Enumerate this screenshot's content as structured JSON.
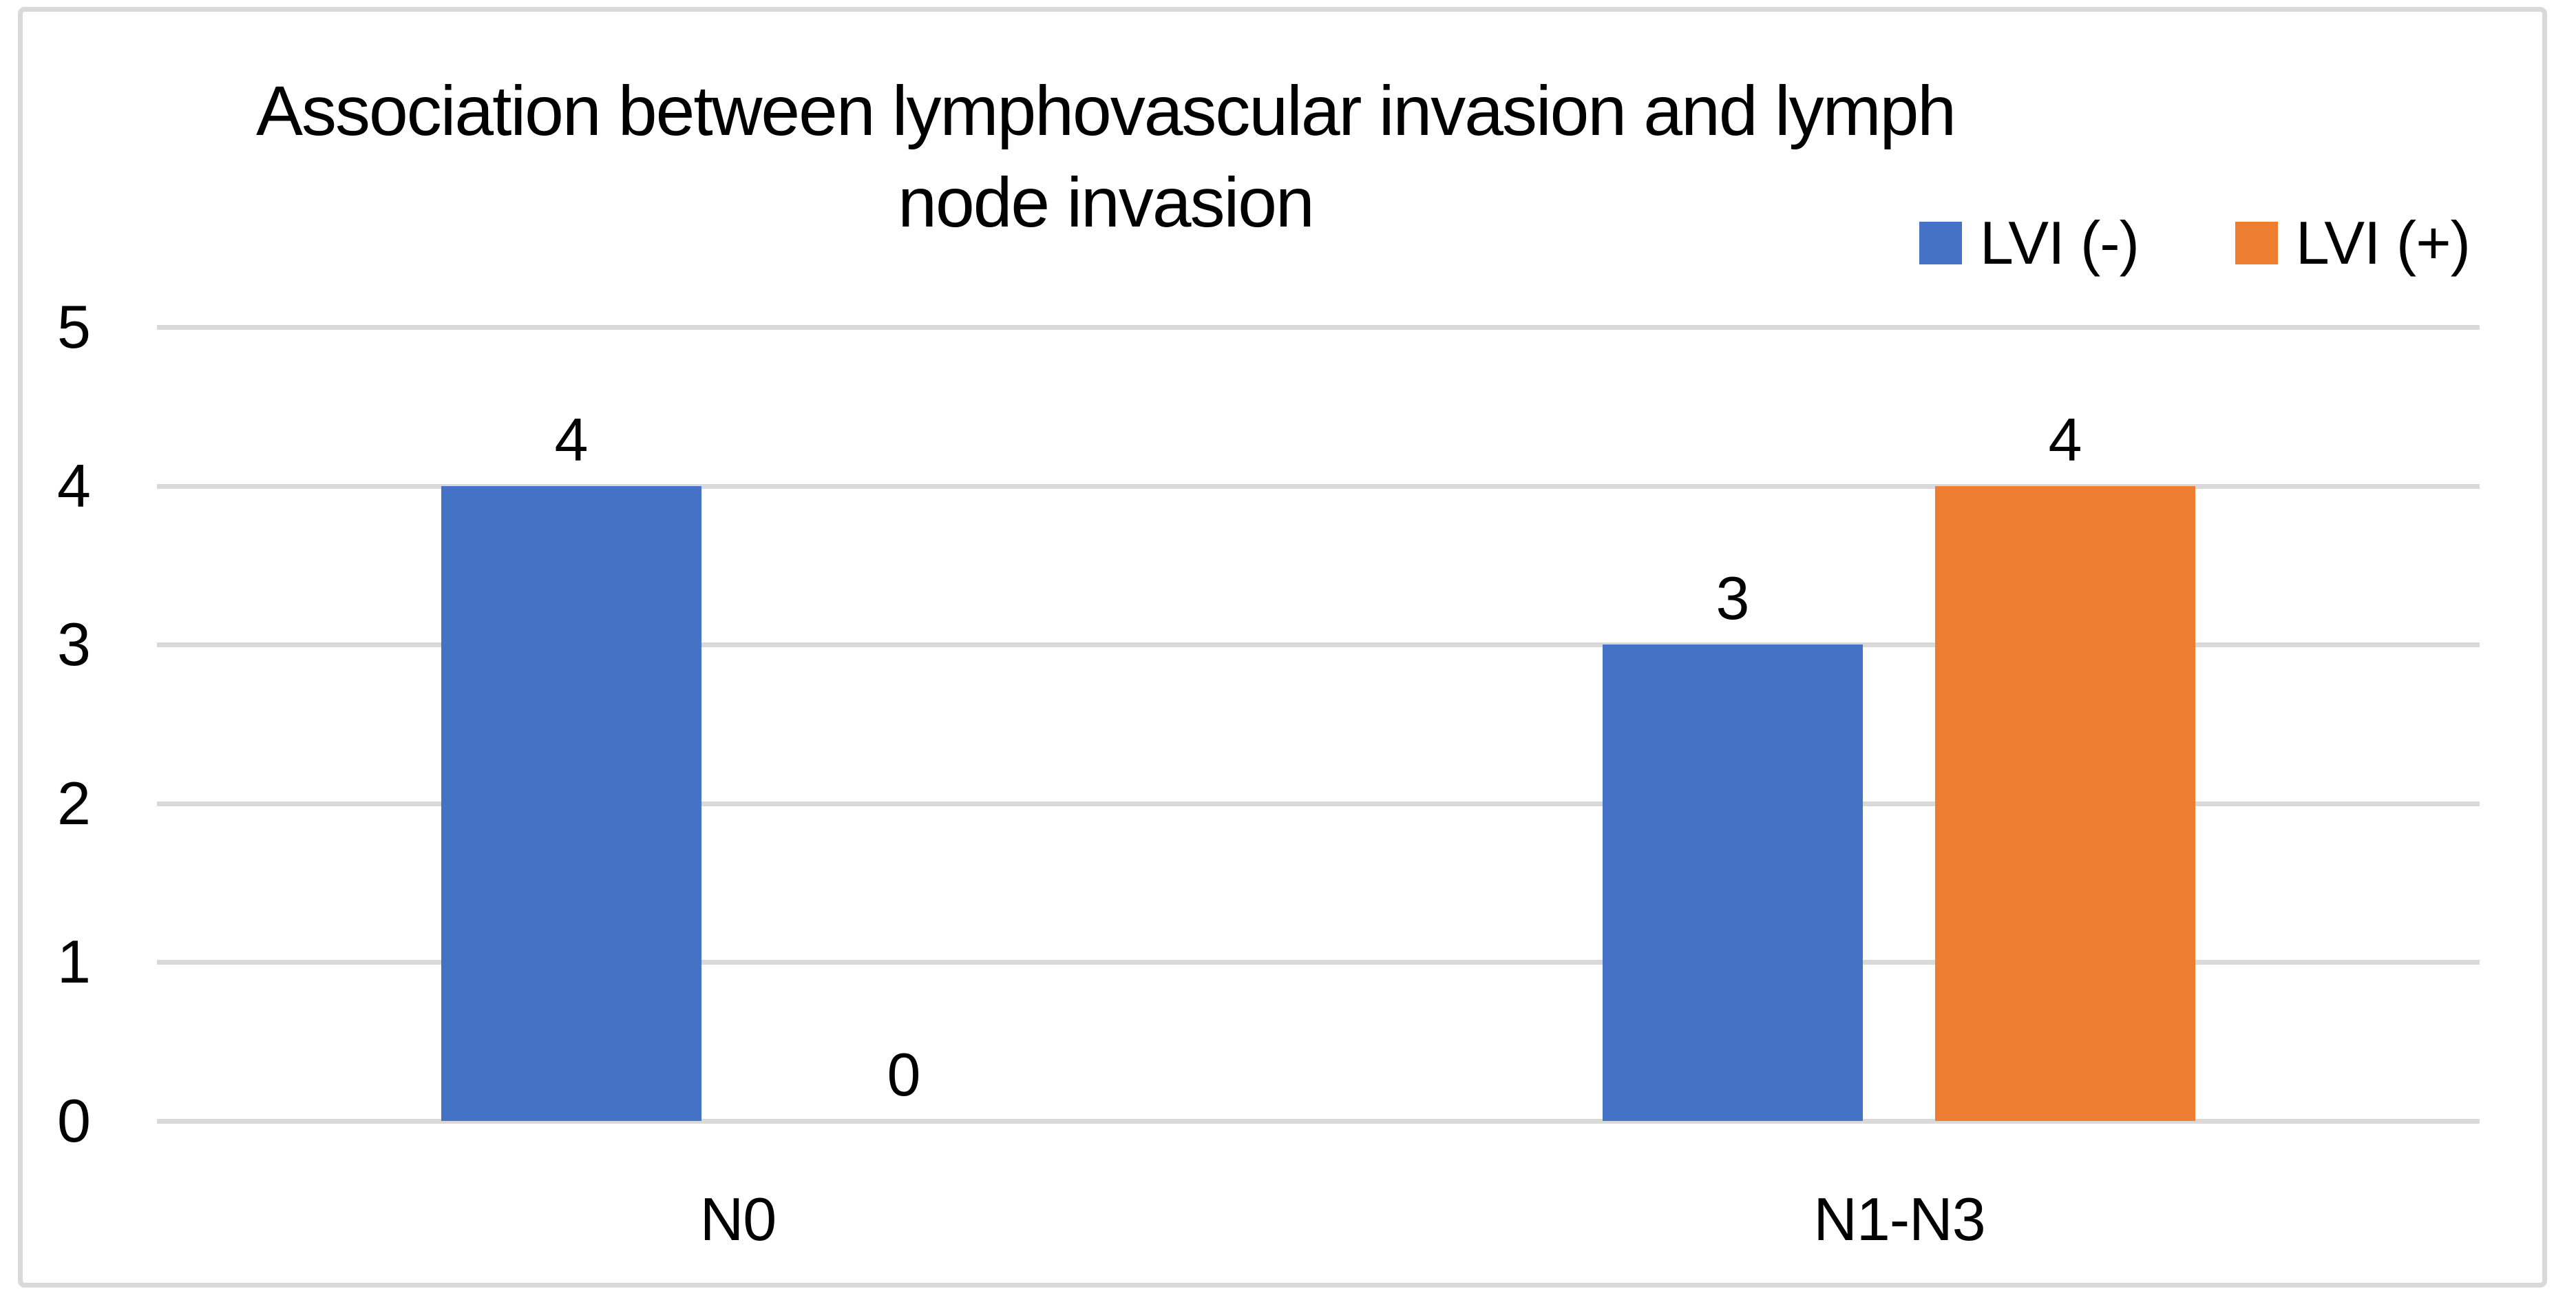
{
  "chart_data": {
    "type": "bar",
    "title": "Association between lymphovascular invasion and lymph node invasion",
    "title_lines": [
      "Association between lymphovascular invasion and lymph",
      "node invasion"
    ],
    "categories": [
      "N0",
      "N1-N3"
    ],
    "series": [
      {
        "name": "LVI (-)",
        "color": "#4472C4",
        "values": [
          4,
          3
        ]
      },
      {
        "name": "LVI (+)",
        "color": "#ED7D31",
        "values": [
          0,
          4
        ]
      }
    ],
    "ylim": [
      0,
      5
    ],
    "yticks": [
      0,
      1,
      2,
      3,
      4,
      5
    ],
    "grid": true,
    "data_labels_shown": true,
    "legend_position": "top-right",
    "colors": {
      "gridline": "#D9D9D9",
      "frame_border": "#D9D9D9",
      "text": "#000000",
      "background": "#FFFFFF"
    }
  }
}
